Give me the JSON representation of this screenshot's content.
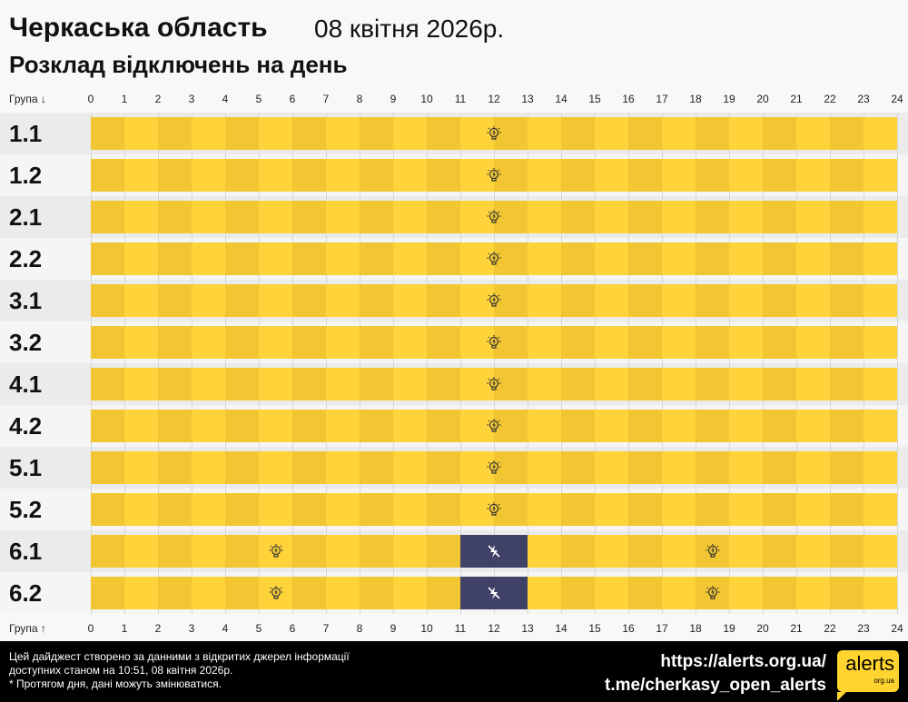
{
  "header": {
    "title": "Черкаська область",
    "date": "08 квітня 2026р.",
    "subtitle": "Розклад відключень на день"
  },
  "axis": {
    "top_label": "Група ↓",
    "bottom_label": "Група ↑",
    "ticks": [
      "0",
      "1",
      "2",
      "3",
      "4",
      "5",
      "6",
      "7",
      "8",
      "9",
      "10",
      "11",
      "12",
      "13",
      "14",
      "15",
      "16",
      "17",
      "18",
      "19",
      "20",
      "21",
      "22",
      "23",
      "24"
    ]
  },
  "colors": {
    "power_on_dark": "#f2c532",
    "power_on_light": "#ffd43a",
    "outage": "#3f4166",
    "row_odd": "#ebebeb",
    "row_even": "#f5f5f5"
  },
  "legend_icons": {
    "on": "lightbulb-icon",
    "off": "lightning-off-icon"
  },
  "groups": [
    {
      "name": "1.1",
      "outages": [],
      "bulbs": [
        12
      ]
    },
    {
      "name": "1.2",
      "outages": [],
      "bulbs": [
        12
      ]
    },
    {
      "name": "2.1",
      "outages": [],
      "bulbs": [
        12
      ]
    },
    {
      "name": "2.2",
      "outages": [],
      "bulbs": [
        12
      ]
    },
    {
      "name": "3.1",
      "outages": [],
      "bulbs": [
        12
      ]
    },
    {
      "name": "3.2",
      "outages": [],
      "bulbs": [
        12
      ]
    },
    {
      "name": "4.1",
      "outages": [],
      "bulbs": [
        12
      ]
    },
    {
      "name": "4.2",
      "outages": [],
      "bulbs": [
        12
      ]
    },
    {
      "name": "5.1",
      "outages": [],
      "bulbs": [
        12
      ]
    },
    {
      "name": "5.2",
      "outages": [],
      "bulbs": [
        12
      ]
    },
    {
      "name": "6.1",
      "outages": [
        [
          11,
          13
        ]
      ],
      "bulbs": [
        5.5,
        18.5
      ]
    },
    {
      "name": "6.2",
      "outages": [
        [
          11,
          13
        ]
      ],
      "bulbs": [
        5.5,
        18.5
      ]
    }
  ],
  "footer": {
    "note_line1": "Цей дайджест створено за данними з відкритих джерел інформації",
    "note_line2": "доступних станом на 10:51, 08 квітня 2026р.",
    "note_line3": "* Протягом дня, дані можуть змінюватися.",
    "link1": "https://alerts.org.ua/",
    "link2": "t.me/cherkasy_open_alerts",
    "logo_main": "alerts",
    "logo_sub": "org.ua"
  }
}
